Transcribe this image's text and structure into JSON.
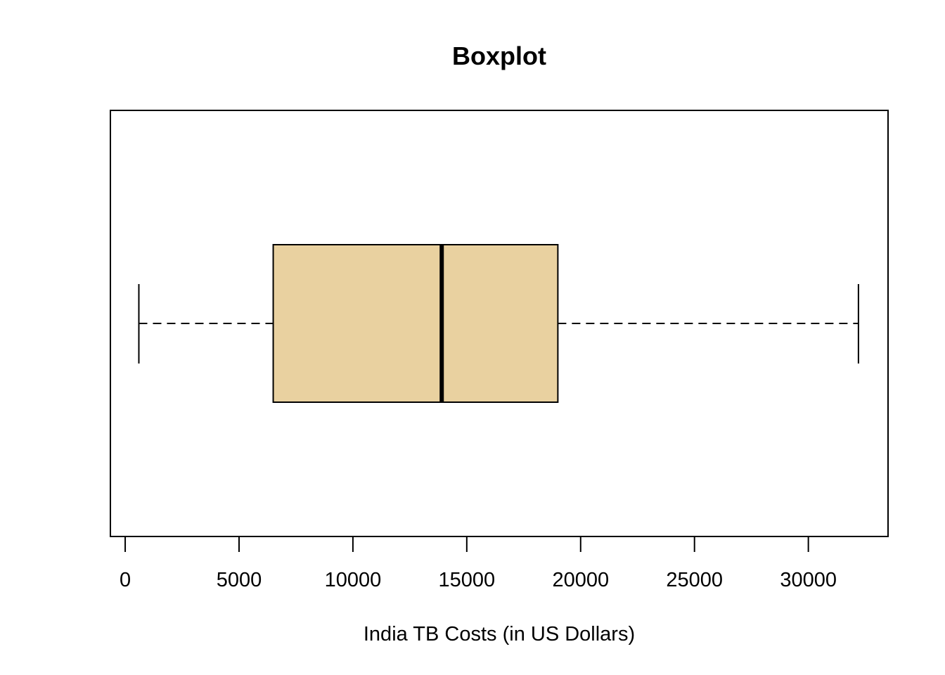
{
  "chart_data": {
    "type": "boxplot",
    "orientation": "horizontal",
    "title": "Boxplot",
    "xlabel": "India TB Costs (in US Dollars)",
    "ylabel": "",
    "xlim": [
      -650,
      33500
    ],
    "x_ticks": [
      0,
      5000,
      10000,
      15000,
      20000,
      25000,
      30000
    ],
    "x_tick_labels": [
      "0",
      "5000",
      "10000",
      "15000",
      "20000",
      "25000",
      "30000"
    ],
    "box": {
      "whisker_low": 600,
      "q1": 6500,
      "median": 13900,
      "q3": 19000,
      "whisker_high": 32200
    },
    "box_fill": "#e9d1a0",
    "grid": false
  }
}
